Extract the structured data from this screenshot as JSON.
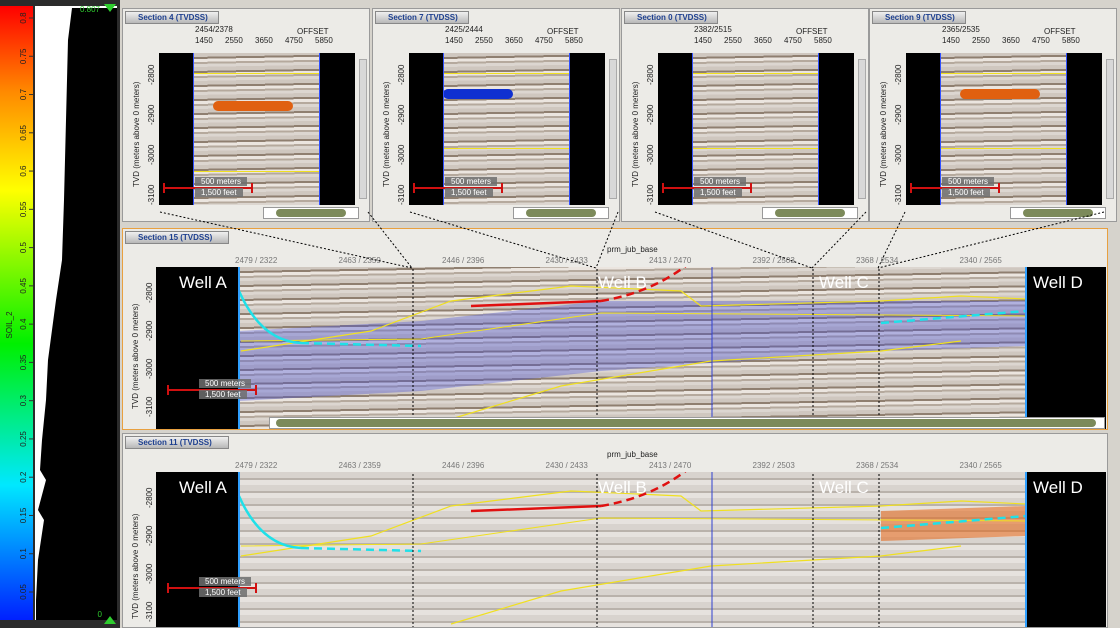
{
  "colorbar": {
    "max_label": "0.807",
    "min_label": "0",
    "axis_label": "SOIL_2",
    "ticks": [
      "0.8",
      "0.75",
      "0.7",
      "0.65",
      "0.6",
      "0.55",
      "0.5",
      "0.45",
      "0.4",
      "0.35",
      "0.3",
      "0.25",
      "0.2",
      "0.15",
      "0.1",
      "0.05"
    ]
  },
  "small_sections": [
    {
      "title": "Section 4 (TVDSS)",
      "trace_label": "2454/2378"
    },
    {
      "title": "Section 7 (TVDSS)",
      "trace_label": "2425/2444"
    },
    {
      "title": "Section 0 (TVDSS)",
      "trace_label": "2382/2515"
    },
    {
      "title": "Section 9 (TVDSS)",
      "trace_label": "2365/2535"
    }
  ],
  "offset_axis": {
    "label": "OFFSET",
    "ticks": [
      "1450",
      "2550",
      "3650",
      "4750",
      "5850"
    ]
  },
  "depth_axis": {
    "label": "TVD (meters above 0 meters)",
    "ticks": [
      "-2800",
      "-2900",
      "-3000",
      "-3100"
    ]
  },
  "scale_bar": {
    "meters": "500 meters",
    "feet": "1,500 feet"
  },
  "sections": [
    {
      "title": "Section 15 (TVDSS)"
    },
    {
      "title": "Section 11 (TVDSS)"
    }
  ],
  "horizon_label": "prm_jub_base",
  "trace_labels": [
    "2479 / 2322",
    "2463 / 2359",
    "2446 / 2396",
    "2430 / 2433",
    "2413 / 2470",
    "2392 / 2503",
    "2368 / 2534",
    "2340 / 2565"
  ],
  "wells": [
    "Well A",
    "Well B",
    "Well C",
    "Well D"
  ]
}
